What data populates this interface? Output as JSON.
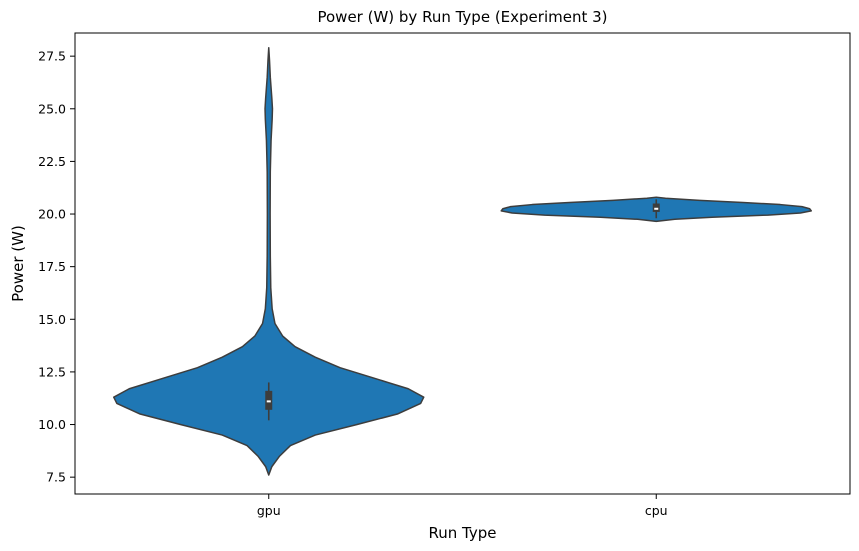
{
  "chart_data": {
    "type": "violin",
    "title": "Power (W) by Run Type (Experiment 3)",
    "xlabel": "Run Type",
    "ylabel": "Power (W)",
    "categories": [
      "gpu",
      "cpu"
    ],
    "ylim": [
      6.7,
      28.6
    ],
    "yticks": [
      "7.5",
      "10.0",
      "12.5",
      "15.0",
      "17.5",
      "20.0",
      "22.5",
      "25.0",
      "27.5"
    ],
    "ytick_values": [
      7.5,
      10.0,
      12.5,
      15.0,
      17.5,
      20.0,
      22.5,
      25.0,
      27.5
    ],
    "fill_color": "#1f77b4",
    "edge_color": "#3d3d3d",
    "grid": false,
    "series": [
      {
        "category": "gpu",
        "min": 7.6,
        "max": 27.9,
        "q1": 10.7,
        "median": 11.1,
        "q3": 11.6,
        "whisker_low": 10.2,
        "whisker_high": 12.0,
        "density": [
          [
            7.6,
            0.0
          ],
          [
            8.0,
            0.02
          ],
          [
            8.5,
            0.07
          ],
          [
            9.0,
            0.14
          ],
          [
            9.5,
            0.3
          ],
          [
            10.0,
            0.57
          ],
          [
            10.5,
            0.83
          ],
          [
            11.0,
            0.98
          ],
          [
            11.3,
            1.0
          ],
          [
            11.7,
            0.9
          ],
          [
            12.2,
            0.68
          ],
          [
            12.7,
            0.46
          ],
          [
            13.2,
            0.3
          ],
          [
            13.7,
            0.17
          ],
          [
            14.2,
            0.09
          ],
          [
            14.8,
            0.04
          ],
          [
            15.5,
            0.022
          ],
          [
            16.5,
            0.013
          ],
          [
            18.0,
            0.01
          ],
          [
            20.0,
            0.009
          ],
          [
            22.0,
            0.01
          ],
          [
            23.5,
            0.015
          ],
          [
            24.5,
            0.022
          ],
          [
            25.0,
            0.024
          ],
          [
            25.5,
            0.02
          ],
          [
            26.5,
            0.01
          ],
          [
            27.3,
            0.005
          ],
          [
            27.9,
            0.0
          ]
        ]
      },
      {
        "category": "cpu",
        "min": 19.7,
        "max": 20.8,
        "q1": 20.1,
        "median": 20.25,
        "q3": 20.5,
        "whisker_low": 19.8,
        "whisker_high": 20.7,
        "density": [
          [
            19.65,
            0.0
          ],
          [
            19.75,
            0.12
          ],
          [
            19.85,
            0.36
          ],
          [
            19.95,
            0.72
          ],
          [
            20.05,
            0.93
          ],
          [
            20.15,
            1.0
          ],
          [
            20.25,
            0.99
          ],
          [
            20.35,
            0.94
          ],
          [
            20.45,
            0.8
          ],
          [
            20.55,
            0.56
          ],
          [
            20.65,
            0.28
          ],
          [
            20.75,
            0.06
          ],
          [
            20.8,
            0.0
          ]
        ]
      }
    ]
  }
}
